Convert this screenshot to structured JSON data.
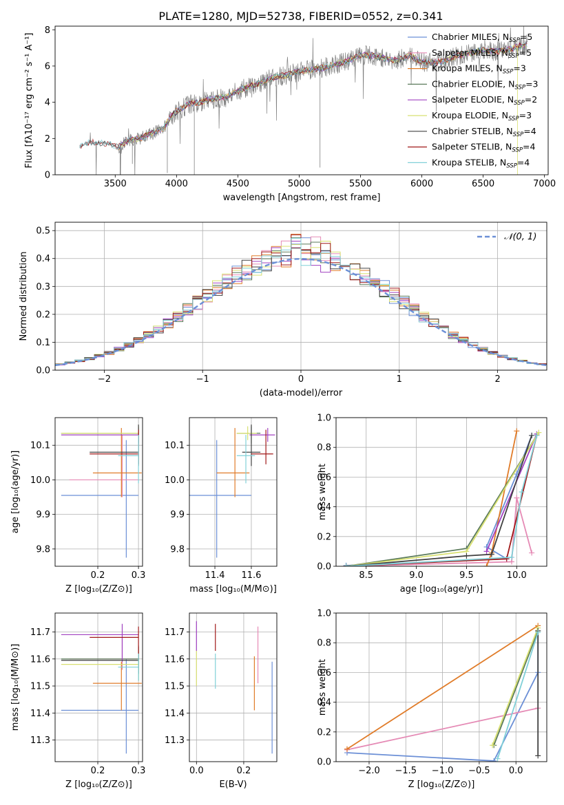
{
  "figure_title": "PLATE=1280, MJD=52738, FIBERID=0552, z=0.341",
  "colors": {
    "Chabrier MILES": "#6b8fd6",
    "Salpeter MILES": "#e58ab5",
    "Kroupa MILES": "#e07b28",
    "Chabrier ELODIE": "#5a7a5a",
    "Salpeter ELODIE": "#a040c0",
    "Kroupa ELODIE": "#d8e070",
    "Chabrier STELIB": "#404040",
    "Salpeter STELIB": "#a01818",
    "Kroupa STELIB": "#80d0d8",
    "data": "#808080"
  },
  "chart_data": [
    {
      "id": "spectrum",
      "type": "line",
      "title": "PLATE=1280, MJD=52738, FIBERID=0552, z=0.341",
      "xlabel": "wavelength [Angstrom, rest frame]",
      "ylabel": "Flux [fλ10⁻¹⁷ erg cm⁻² s⁻¹ A⁻¹]",
      "xlim": [
        3010,
        7030
      ],
      "ylim": [
        0,
        8.2
      ],
      "xticks": [
        3500,
        4000,
        4500,
        5000,
        5500,
        6000,
        6500,
        7000
      ],
      "yticks": [
        0,
        2,
        4,
        6,
        8
      ],
      "continuum": {
        "x": [
          3210,
          3300,
          3400,
          3480,
          3520,
          3600,
          3700,
          3800,
          3900,
          3950,
          4000,
          4100,
          4200,
          4300,
          4400,
          4500,
          4600,
          4700,
          4800,
          4900,
          5000,
          5100,
          5200,
          5300,
          5400,
          5500,
          5600,
          5700,
          5800,
          5900,
          6000,
          6100,
          6200,
          6300,
          6400,
          6500,
          6600,
          6700,
          6800,
          6860
        ],
        "y": [
          1.6,
          1.8,
          1.75,
          1.65,
          1.5,
          1.9,
          2.0,
          2.3,
          2.6,
          3.2,
          3.5,
          3.9,
          4.0,
          4.2,
          4.3,
          4.6,
          4.9,
          5.1,
          5.4,
          5.5,
          5.7,
          5.8,
          5.9,
          6.1,
          6.3,
          6.6,
          6.6,
          6.4,
          6.3,
          6.6,
          6.2,
          6.2,
          6.3,
          6.6,
          6.7,
          6.9,
          6.8,
          6.9,
          7.1,
          7.2
        ]
      },
      "legend": [
        {
          "name": "Chabrier MILES, N",
          "sub": "SSP",
          "tail": "=5",
          "color": "#6b8fd6"
        },
        {
          "name": "Salpeter MILES, N",
          "sub": "SSP",
          "tail": "=5",
          "color": "#e58ab5"
        },
        {
          "name": "Kroupa MILES, N",
          "sub": "SSP",
          "tail": "=3",
          "color": "#e07b28"
        },
        {
          "name": "Chabrier ELODIE, N",
          "sub": "SSP",
          "tail": "=3",
          "color": "#5a7a5a"
        },
        {
          "name": "Salpeter ELODIE, N",
          "sub": "SSP",
          "tail": "=2",
          "color": "#a040c0"
        },
        {
          "name": "Kroupa ELODIE, N",
          "sub": "SSP",
          "tail": "=3",
          "color": "#d8e070"
        },
        {
          "name": "Chabrier STELIB, N",
          "sub": "SSP",
          "tail": "=4",
          "color": "#404040"
        },
        {
          "name": "Salpeter STELIB, N",
          "sub": "SSP",
          "tail": "=4",
          "color": "#a01818"
        },
        {
          "name": "Kroupa STELIB, N",
          "sub": "SSP",
          "tail": "=4",
          "color": "#80d0d8"
        }
      ],
      "legend_placement": "right"
    },
    {
      "id": "residuals",
      "type": "histogram",
      "xlabel": "(data-model)/error",
      "ylabel": "Normed distribution",
      "xlim": [
        -2.5,
        2.5
      ],
      "ylim": [
        0,
        0.53
      ],
      "xticks": [
        -2,
        -1,
        0,
        1,
        2
      ],
      "yticks": [
        0.0,
        0.1,
        0.2,
        0.3,
        0.4,
        0.5
      ],
      "grid": true,
      "legend": "𝒩(0, 1)",
      "legend_placement": "top-right",
      "normal_curve": {
        "mean": 0,
        "sigma": 1,
        "color": "#6b8fd6",
        "style": "dashed"
      },
      "bin_width": 0.1,
      "bin_start": -2.5,
      "series": [
        {
          "name": "Chabrier MILES",
          "color": "#6b8fd6",
          "jitter": 1
        },
        {
          "name": "Salpeter MILES",
          "color": "#e58ab5",
          "jitter": 2
        },
        {
          "name": "Kroupa MILES",
          "color": "#e07b28",
          "jitter": 3
        },
        {
          "name": "Chabrier ELODIE",
          "color": "#5a7a5a",
          "jitter": 4
        },
        {
          "name": "Salpeter ELODIE",
          "color": "#a040c0",
          "jitter": 5
        },
        {
          "name": "Kroupa ELODIE",
          "color": "#d8e070",
          "jitter": 6
        },
        {
          "name": "Chabrier STELIB",
          "color": "#404040",
          "jitter": 7
        },
        {
          "name": "Salpeter STELIB",
          "color": "#a01818",
          "jitter": 8
        },
        {
          "name": "Kroupa STELIB",
          "color": "#80d0d8",
          "jitter": 9
        }
      ]
    },
    {
      "id": "age_vs_Z",
      "type": "errorbar",
      "xlabel": "Z [log₁₀(Z/Z⊙)]",
      "ylabel": "age  [log₁₀(age/yr)]",
      "xlim": [
        0.095,
        0.31
      ],
      "ylim": [
        9.75,
        10.18
      ],
      "xticks": [
        0.2,
        0.3
      ],
      "yticks": [
        9.8,
        9.9,
        10.0,
        10.1
      ],
      "grid": true,
      "points": [
        {
          "color": "#6b8fd6",
          "x": 0.27,
          "xerr": [
            0.16,
            0.03
          ],
          "y": 9.955,
          "yerr": [
            0.18,
            0.16
          ]
        },
        {
          "color": "#e58ab5",
          "x": 0.26,
          "xerr": [
            0.13,
            0.04
          ],
          "y": 10.0,
          "yerr": [
            0.05,
            0.13
          ]
        },
        {
          "color": "#e07b28",
          "x": 0.258,
          "xerr": [
            0.07,
            0.05
          ],
          "y": 10.02,
          "yerr": [
            0.07,
            0.13
          ]
        },
        {
          "color": "#5a7a5a",
          "x": 0.3,
          "xerr": [
            0.19,
            0.0
          ],
          "y": 10.135,
          "yerr": [
            0.03,
            0.02
          ]
        },
        {
          "color": "#a040c0",
          "x": 0.3,
          "xerr": [
            0.19,
            0.0
          ],
          "y": 10.13,
          "yerr": [
            0.02,
            0.02
          ]
        },
        {
          "color": "#d8e070",
          "x": 0.3,
          "xerr": [
            0.19,
            0.0
          ],
          "y": 10.135,
          "yerr": [
            0.02,
            0.02
          ]
        },
        {
          "color": "#404040",
          "x": 0.3,
          "xerr": [
            0.12,
            0.0
          ],
          "y": 10.08,
          "yerr": [
            0.04,
            0.08
          ]
        },
        {
          "color": "#a01818",
          "x": 0.3,
          "xerr": [
            0.12,
            0.0
          ],
          "y": 10.075,
          "yerr": [
            0.03,
            0.07
          ]
        },
        {
          "color": "#80d0d8",
          "x": 0.3,
          "xerr": [
            0.05,
            0.0
          ],
          "y": 10.07,
          "yerr": [
            0.08,
            0.06
          ]
        }
      ]
    },
    {
      "id": "age_vs_mass",
      "type": "errorbar",
      "xlabel": "mass [log₁₀(M/M⊙)]",
      "xlim": [
        11.26,
        11.74
      ],
      "ylim": [
        9.75,
        10.18
      ],
      "xticks": [
        11.4,
        11.6
      ],
      "yticks": [
        9.8,
        9.9,
        10.0,
        10.1
      ],
      "grid": true,
      "points": [
        {
          "color": "#6b8fd6",
          "x": 11.41,
          "xerr": [
            0.16,
            0.19
          ],
          "y": 9.955,
          "yerr": [
            0.18,
            0.16
          ]
        },
        {
          "color": "#e07b28",
          "x": 11.51,
          "xerr": [
            0.1,
            0.08
          ],
          "y": 10.02,
          "yerr": [
            0.07,
            0.13
          ]
        },
        {
          "color": "#5a7a5a",
          "x": 11.6,
          "xerr": [
            0.08,
            0.05
          ],
          "y": 10.135,
          "yerr": [
            0.03,
            0.02
          ]
        },
        {
          "color": "#a040c0",
          "x": 11.69,
          "xerr": [
            0.1,
            0.04
          ],
          "y": 10.13,
          "yerr": [
            0.02,
            0.02
          ]
        },
        {
          "color": "#d8e070",
          "x": 11.58,
          "xerr": [
            0.06,
            0.05
          ],
          "y": 10.135,
          "yerr": [
            0.02,
            0.02
          ]
        },
        {
          "color": "#404040",
          "x": 11.6,
          "xerr": [
            0.05,
            0.05
          ],
          "y": 10.08,
          "yerr": [
            0.04,
            0.08
          ]
        },
        {
          "color": "#a01818",
          "x": 11.68,
          "xerr": [
            0.08,
            0.04
          ],
          "y": 10.075,
          "yerr": [
            0.03,
            0.07
          ]
        },
        {
          "color": "#80d0d8",
          "x": 11.57,
          "xerr": [
            0.05,
            0.05
          ],
          "y": 10.07,
          "yerr": [
            0.08,
            0.06
          ]
        }
      ]
    },
    {
      "id": "massweight_vs_age",
      "type": "line",
      "xlabel": "age  [log₁₀(age/yr)]",
      "ylabel": "mass weight",
      "xlim": [
        8.2,
        10.3
      ],
      "ylim": [
        0,
        1.0
      ],
      "xticks": [
        8.5,
        9.0,
        9.5,
        10.0
      ],
      "yticks": [
        0.0,
        0.2,
        0.4,
        0.6,
        0.8,
        1.0
      ],
      "grid": true,
      "series": [
        {
          "color": "#6b8fd6",
          "x": [
            8.3,
            9.9,
            9.7,
            10.0,
            10.15
          ],
          "y": [
            0.005,
            0.05,
            0.13,
            0.62,
            0.88
          ]
        },
        {
          "color": "#e58ab5",
          "x": [
            8.3,
            9.95,
            10.0,
            10.15
          ],
          "y": [
            0.0,
            0.03,
            0.46,
            0.09
          ]
        },
        {
          "color": "#e07b28",
          "x": [
            9.7,
            9.75,
            10.0
          ],
          "y": [
            0.0,
            0.09,
            0.91
          ]
        },
        {
          "color": "#5a7a5a",
          "x": [
            8.3,
            9.5,
            10.2
          ],
          "y": [
            0.0,
            0.12,
            0.88
          ]
        },
        {
          "color": "#a040c0",
          "x": [
            9.7,
            10.2
          ],
          "y": [
            0.1,
            0.89
          ]
        },
        {
          "color": "#d8e070",
          "x": [
            8.3,
            9.5,
            10.22
          ],
          "y": [
            0.0,
            0.1,
            0.9
          ]
        },
        {
          "color": "#404040",
          "x": [
            8.3,
            9.5,
            9.75,
            10.15
          ],
          "y": [
            0.0,
            0.07,
            0.08,
            0.88
          ]
        },
        {
          "color": "#a01818",
          "x": [
            8.3,
            9.9,
            10.2
          ],
          "y": [
            0.0,
            0.05,
            0.88
          ]
        },
        {
          "color": "#80d0d8",
          "x": [
            8.3,
            9.95,
            10.05,
            10.2
          ],
          "y": [
            0.0,
            0.06,
            0.5,
            0.88
          ]
        }
      ]
    },
    {
      "id": "mass_vs_Z",
      "type": "errorbar",
      "xlabel": "Z [log₁₀(Z/Z⊙)]",
      "ylabel": "mass [log₁₀(M/M⊙)]",
      "xlim": [
        0.095,
        0.31
      ],
      "ylim": [
        11.22,
        11.77
      ],
      "xticks": [
        0.2,
        0.3
      ],
      "yticks": [
        11.3,
        11.4,
        11.5,
        11.6,
        11.7
      ],
      "grid": true,
      "points": [
        {
          "color": "#6b8fd6",
          "x": 0.27,
          "xerr": [
            0.16,
            0.03
          ],
          "y": 11.41,
          "yerr": [
            0.16,
            0.19
          ]
        },
        {
          "color": "#e58ab5",
          "x": 0.26,
          "xerr": [
            0.13,
            0.04
          ],
          "y": 11.6,
          "yerr": [
            0.04,
            0.08
          ]
        },
        {
          "color": "#e07b28",
          "x": 0.258,
          "xerr": [
            0.07,
            0.05
          ],
          "y": 11.51,
          "yerr": [
            0.1,
            0.08
          ]
        },
        {
          "color": "#5a7a5a",
          "x": 0.3,
          "xerr": [
            0.19,
            0.0
          ],
          "y": 11.6,
          "yerr": [
            0.08,
            0.05
          ]
        },
        {
          "color": "#a040c0",
          "x": 0.26,
          "xerr": [
            0.15,
            0.04
          ],
          "y": 11.69,
          "yerr": [
            0.1,
            0.04
          ]
        },
        {
          "color": "#d8e070",
          "x": 0.3,
          "xerr": [
            0.19,
            0.0
          ],
          "y": 11.58,
          "yerr": [
            0.06,
            0.05
          ]
        },
        {
          "color": "#404040",
          "x": 0.3,
          "xerr": [
            0.19,
            0.0
          ],
          "y": 11.595,
          "yerr": [
            0.05,
            0.05
          ]
        },
        {
          "color": "#a01818",
          "x": 0.3,
          "xerr": [
            0.12,
            0.0
          ],
          "y": 11.68,
          "yerr": [
            0.08,
            0.04
          ]
        },
        {
          "color": "#80d0d8",
          "x": 0.3,
          "xerr": [
            0.05,
            0.0
          ],
          "y": 11.57,
          "yerr": [
            0.05,
            0.05
          ]
        }
      ]
    },
    {
      "id": "mass_vs_ebv",
      "type": "errorbar",
      "xlabel": "E(B-V)",
      "xlim": [
        -0.03,
        0.34
      ],
      "ylim": [
        11.22,
        11.77
      ],
      "xticks": [
        0.0,
        0.2
      ],
      "yticks": [
        11.3,
        11.4,
        11.5,
        11.6,
        11.7
      ],
      "grid": true,
      "points": [
        {
          "color": "#6b8fd6",
          "x": 0.32,
          "y": 11.41,
          "yerr": [
            0.16,
            0.18
          ]
        },
        {
          "color": "#e58ab5",
          "x": 0.26,
          "y": 11.6,
          "yerr": [
            0.09,
            0.12
          ]
        },
        {
          "color": "#e07b28",
          "x": 0.245,
          "y": 11.51,
          "yerr": [
            0.1,
            0.1
          ]
        },
        {
          "color": "#a040c0",
          "x": 0.0,
          "y": 11.69,
          "yerr": [
            0.06,
            0.05
          ]
        },
        {
          "color": "#d8e070",
          "x": 0.0,
          "y": 11.58,
          "yerr": [
            0.08,
            0.05
          ]
        },
        {
          "color": "#a01818",
          "x": 0.08,
          "y": 11.68,
          "yerr": [
            0.05,
            0.05
          ]
        },
        {
          "color": "#80d0d8",
          "x": 0.08,
          "y": 11.57,
          "yerr": [
            0.08,
            0.05
          ]
        }
      ]
    },
    {
      "id": "massweight_vs_Z",
      "type": "line",
      "xlabel": "Z [log₁₀(Z/Z⊙)]",
      "ylabel": "mass weight",
      "xlim": [
        -2.45,
        0.42
      ],
      "ylim": [
        0,
        1.0
      ],
      "xticks": [
        -2.0,
        -1.5,
        -1.0,
        -0.5,
        0.0
      ],
      "yticks": [
        0.0,
        0.2,
        0.4,
        0.6,
        0.8,
        1.0
      ],
      "grid": true,
      "series": [
        {
          "color": "#6b8fd6",
          "x": [
            -2.3,
            -0.3,
            0.3,
            0.3
          ],
          "y": [
            0.06,
            0.005,
            0.6,
            0.88
          ]
        },
        {
          "color": "#e58ab5",
          "x": [
            -2.3,
            0.3
          ],
          "y": [
            0.08,
            0.36
          ]
        },
        {
          "color": "#e07b28",
          "x": [
            -2.3,
            0.3
          ],
          "y": [
            0.085,
            0.915
          ]
        },
        {
          "color": "#5a7a5a",
          "x": [
            -0.3,
            0.3
          ],
          "y": [
            0.11,
            0.88
          ]
        },
        {
          "color": "#d8e070",
          "x": [
            -0.32,
            0.3
          ],
          "y": [
            0.11,
            0.9
          ]
        },
        {
          "color": "#404040",
          "x": [
            0.3,
            0.3
          ],
          "y": [
            0.04,
            0.88
          ]
        },
        {
          "color": "#80d0d8",
          "x": [
            -0.25,
            0.3
          ],
          "y": [
            0.02,
            0.87
          ]
        }
      ]
    }
  ]
}
